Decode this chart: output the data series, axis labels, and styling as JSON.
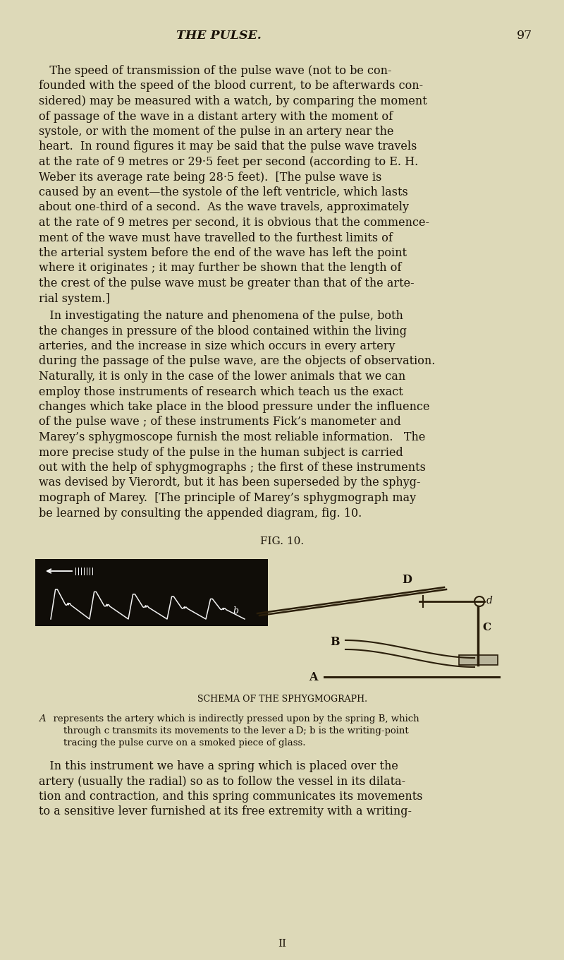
{
  "bg_color": "#ddd9b8",
  "text_color": "#1a1208",
  "page_header": "THE PULSE.",
  "page_number": "97",
  "fig_caption": "FIG. 10.",
  "schema_caption": "SCHEMA OF THE SPHYGMOGRAPH.",
  "ann_A": "A",
  "ann_line1": "  represents the artery which is indirectly pressed upon by the spring B, which",
  "ann_line2": "    through c transmits its movements to the lever a D; b is the writing-point",
  "ann_line3": "    tracing the pulse curve on a smoked piece of glass.",
  "paragraph1_lines": [
    "   The speed of transmission of the pulse wave (not to be con-",
    "founded with the speed of the blood current, to be afterwards con-",
    "sidered) may be measured with a watch, by comparing the moment",
    "of passage of the wave in a distant artery with the moment of",
    "systole, or with the moment of the pulse in an artery near the",
    "heart.  In round figures it may be said that the pulse wave travels",
    "at the rate of 9 metres or 29·5 feet per second (according to E. H.",
    "Weber its average rate being 28·5 feet).  [The pulse wave is",
    "caused by an event—the systole of the left ventricle, which lasts",
    "about one-third of a second.  As the wave travels, approximately",
    "at the rate of 9 metres per second, it is obvious that the commence-",
    "ment of the wave must have travelled to the furthest limits of",
    "the arterial system before the end of the wave has left the point",
    "where it originates ; it may further be shown that the length of",
    "the crest of the pulse wave must be greater than that of the arte-",
    "rial system.]"
  ],
  "paragraph2_lines": [
    "   In investigating the nature and phenomena of the pulse, both",
    "the changes in pressure of the blood contained within the living",
    "arteries, and the increase in size which occurs in every artery",
    "during the passage of the pulse wave, are the objects of observation.",
    "Naturally, it is only in the case of the lower animals that we can",
    "employ those instruments of research which teach us the exact",
    "changes which take place in the blood pressure under the influence",
    "of the pulse wave ; of these instruments Fick’s manometer and",
    "Marey’s sphygmoscope furnish the most reliable information.   The",
    "more precise study of the pulse in the human subject is carried",
    "out with the help of sphygmographs ; the first of these instruments",
    "was devised by Vierordt, but it has been superseded by the sphyg-",
    "mograph of Marey.  [The principle of Marey’s sphygmograph may",
    "be learned by consulting the appended diagram, fig. 10."
  ],
  "paragraph3_lines": [
    "   In this instrument we have a spring which is placed over the",
    "artery (usually the radial) so as to follow the vessel in its dilata-",
    "tion and contraction, and this spring communicates its movements",
    "to a sensitive lever furnished at its free extremity with a writing-"
  ],
  "footer": "II"
}
